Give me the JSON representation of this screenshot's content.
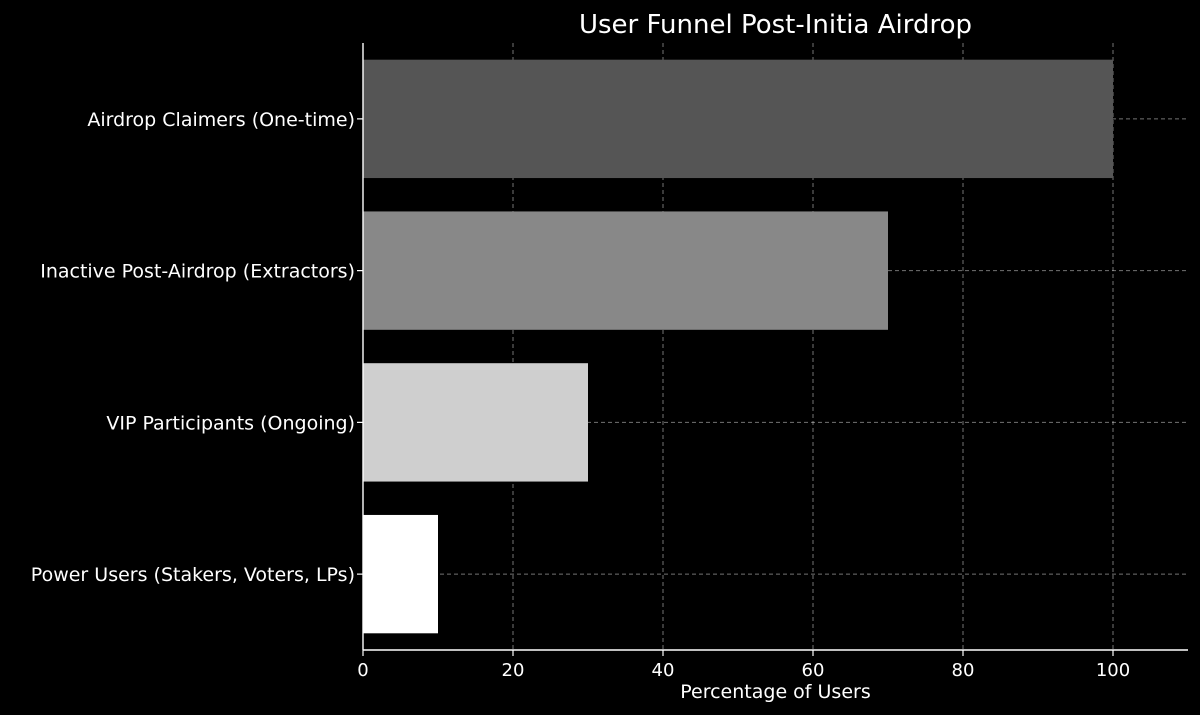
{
  "chart_data": {
    "type": "bar",
    "orientation": "horizontal",
    "title": "User Funnel Post-Initia Airdrop",
    "xlabel": "Percentage of Users",
    "ylabel": "",
    "categories": [
      "Airdrop Claimers (One-time)",
      "Inactive Post-Airdrop (Extractors)",
      "VIP Participants (Ongoing)",
      "Power Users (Stakers, Voters, LPs)"
    ],
    "values": [
      100,
      70,
      30,
      10
    ],
    "bar_colors": [
      "#555555",
      "#888888",
      "#cfcfcf",
      "#ffffff"
    ],
    "xlim": [
      0,
      110
    ],
    "xticks": [
      0,
      20,
      40,
      60,
      80,
      100
    ],
    "grid": true,
    "background_color": "#000000",
    "text_color": "#ffffff"
  }
}
